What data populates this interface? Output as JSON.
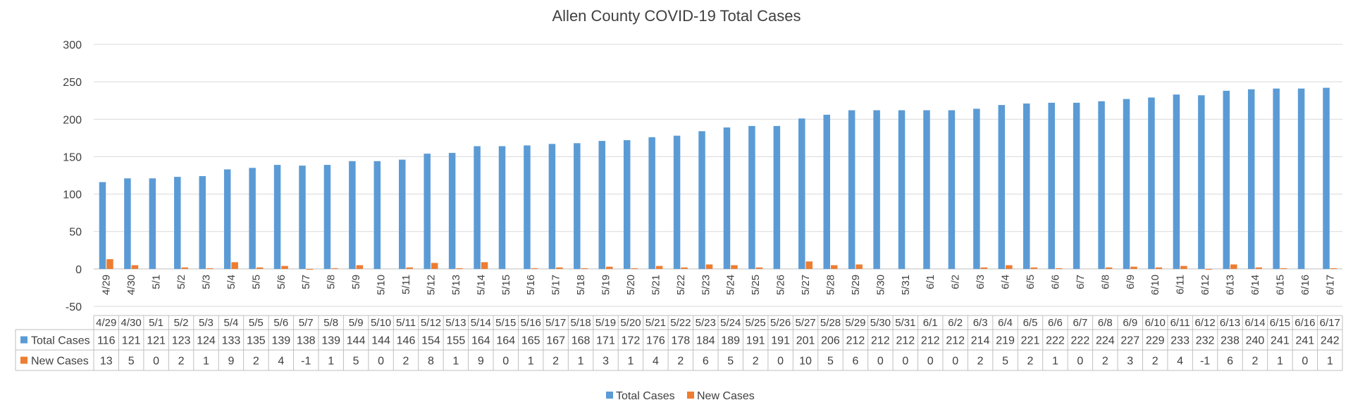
{
  "chart_data": {
    "type": "bar",
    "title": "Allen County COVID-19 Total Cases",
    "xlabel": "",
    "ylabel": "",
    "ylim": [
      -50,
      300
    ],
    "yticks": [
      -50,
      0,
      50,
      100,
      150,
      200,
      250,
      300
    ],
    "grid": true,
    "legend_position": "bottom",
    "data_table": true,
    "categories": [
      "4/29",
      "4/30",
      "5/1",
      "5/2",
      "5/3",
      "5/4",
      "5/5",
      "5/6",
      "5/7",
      "5/8",
      "5/9",
      "5/10",
      "5/11",
      "5/12",
      "5/13",
      "5/14",
      "5/15",
      "5/16",
      "5/17",
      "5/18",
      "5/19",
      "5/20",
      "5/21",
      "5/22",
      "5/23",
      "5/24",
      "5/25",
      "5/26",
      "5/27",
      "5/28",
      "5/29",
      "5/30",
      "5/31",
      "6/1",
      "6/2",
      "6/3",
      "6/4",
      "6/5",
      "6/6",
      "6/7",
      "6/8",
      "6/9",
      "6/10",
      "6/11",
      "6/12",
      "6/13",
      "6/14",
      "6/15",
      "6/16",
      "6/17"
    ],
    "series": [
      {
        "name": "Total Cases",
        "color": "#5B9BD5",
        "values": [
          116,
          121,
          121,
          123,
          124,
          133,
          135,
          139,
          138,
          139,
          144,
          144,
          146,
          154,
          155,
          164,
          164,
          165,
          167,
          168,
          171,
          172,
          176,
          178,
          184,
          189,
          191,
          191,
          201,
          206,
          212,
          212,
          212,
          212,
          212,
          214,
          219,
          221,
          222,
          222,
          224,
          227,
          229,
          233,
          232,
          238,
          240,
          241,
          241,
          242
        ]
      },
      {
        "name": "New Cases",
        "color": "#ED7D31",
        "values": [
          13,
          5,
          0,
          2,
          1,
          9,
          2,
          4,
          -1,
          1,
          5,
          0,
          2,
          8,
          1,
          9,
          0,
          1,
          2,
          1,
          3,
          1,
          4,
          2,
          6,
          5,
          2,
          0,
          10,
          5,
          6,
          0,
          0,
          0,
          0,
          2,
          5,
          2,
          1,
          0,
          2,
          3,
          2,
          4,
          -1,
          6,
          2,
          1,
          0,
          1
        ]
      }
    ]
  }
}
